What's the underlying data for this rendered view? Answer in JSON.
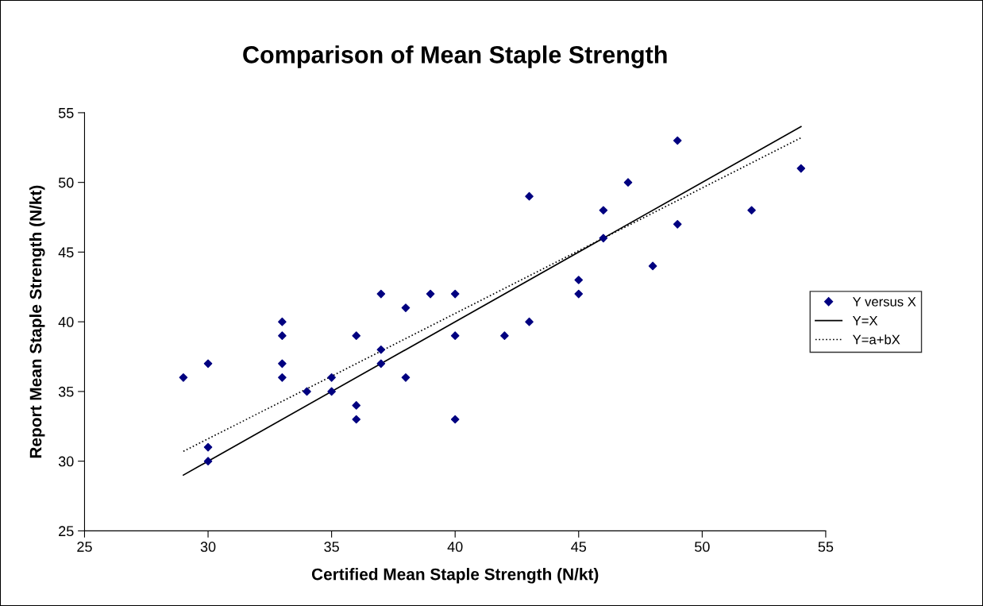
{
  "chart_data": {
    "type": "scatter",
    "title": "Comparison of Mean Staple Strength",
    "xlabel": "Certified Mean Staple Strength (N/kt)",
    "ylabel": "Report Mean Staple Strength (N/kt)",
    "xlim": [
      25,
      55
    ],
    "xticks": [
      25,
      30,
      35,
      40,
      45,
      50,
      55
    ],
    "ylim": [
      25,
      55
    ],
    "yticks": [
      25,
      30,
      35,
      40,
      45,
      50,
      55
    ],
    "grid": false,
    "legend": "right",
    "series": [
      {
        "name": "Y versus X",
        "color": "#000080",
        "marker": "diamond",
        "x": [
          29,
          30,
          30,
          30,
          33,
          33,
          33,
          33,
          34,
          35,
          35,
          36,
          36,
          36,
          37,
          37,
          37,
          38,
          38,
          39,
          40,
          40,
          40,
          42,
          43,
          43,
          45,
          45,
          46,
          46,
          47,
          48,
          49,
          49,
          52,
          54
        ],
        "values": [
          36,
          37,
          31,
          30,
          40,
          39,
          37,
          36,
          35,
          36,
          35,
          39,
          34,
          33,
          42,
          38,
          37,
          41,
          36,
          42,
          42,
          39,
          33,
          39,
          49,
          40,
          43,
          42,
          48,
          46,
          50,
          44,
          53,
          47,
          48,
          51
        ]
      },
      {
        "name": "Y=X",
        "type": "line",
        "color": "#000000",
        "line_style": "solid",
        "marker": "none",
        "x": [
          29,
          54
        ],
        "values": [
          29,
          54
        ]
      },
      {
        "name": "Y=a+bX",
        "type": "line",
        "color": "#000000",
        "line_style": "dotted",
        "marker": "none",
        "x": [
          29,
          54
        ],
        "values": [
          30.7,
          53.2
        ]
      }
    ]
  }
}
